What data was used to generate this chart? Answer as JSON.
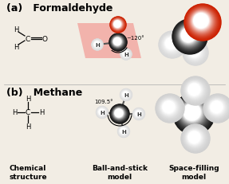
{
  "title_a": "(a)   Formaldehyde",
  "title_b": "(b)   Methane",
  "label_chem": "Chemical\nstructure",
  "label_ball": "Ball-and-stick\nmodel",
  "label_space": "Space-filling\nmodel",
  "bg_color": "#f2ede4",
  "angle_label_formaldehyde": "~120°",
  "angle_label_methane": "109.5°",
  "title_fontsize": 9,
  "label_fontsize": 6.5
}
